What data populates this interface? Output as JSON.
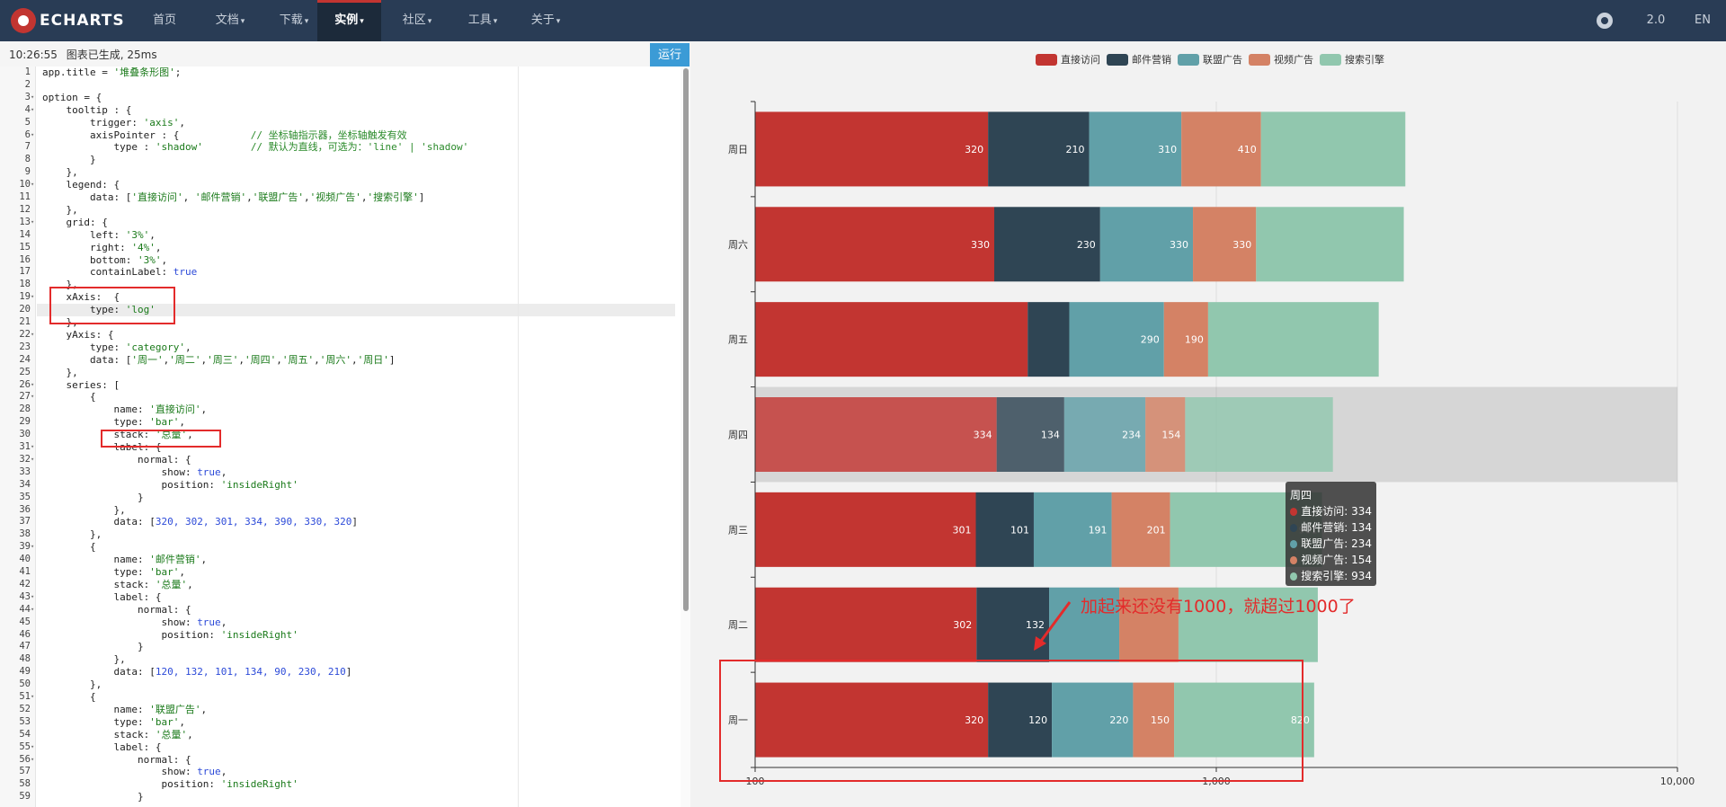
{
  "navbar": {
    "logo": "ECHARTS",
    "items": [
      {
        "label": "首页",
        "caret": false,
        "active": false
      },
      {
        "label": "文档",
        "caret": true,
        "active": false
      },
      {
        "label": "下载",
        "caret": true,
        "active": false
      },
      {
        "label": "实例",
        "caret": true,
        "active": true
      },
      {
        "label": "社区",
        "caret": true,
        "active": false
      },
      {
        "label": "工具",
        "caret": true,
        "active": false
      },
      {
        "label": "关于",
        "caret": true,
        "active": false
      }
    ],
    "version": "2.0",
    "lang": "EN"
  },
  "status": {
    "time": "10:26:55",
    "message": "图表已生成, 25ms"
  },
  "run_label": "运行",
  "code_lines": [
    "app.title = '堆叠条形图';",
    "",
    "option = {",
    "    tooltip : {",
    "        trigger: 'axis',",
    "        axisPointer : {            // 坐标轴指示器，坐标轴触发有效",
    "            type : 'shadow'        // 默认为直线，可选为：'line' | 'shadow'",
    "        }",
    "    },",
    "    legend: {",
    "        data: ['直接访问', '邮件营销','联盟广告','视频广告','搜索引擎']",
    "    },",
    "    grid: {",
    "        left: '3%',",
    "        right: '4%',",
    "        bottom: '3%',",
    "        containLabel: true",
    "    },",
    "    xAxis:  {",
    "        type: 'log'",
    "    },",
    "    yAxis: {",
    "        type: 'category',",
    "        data: ['周一','周二','周三','周四','周五','周六','周日']",
    "    },",
    "    series: [",
    "        {",
    "            name: '直接访问',",
    "            type: 'bar',",
    "            stack: '总量',",
    "            label: {",
    "                normal: {",
    "                    show: true,",
    "                    position: 'insideRight'",
    "                }",
    "            },",
    "            data: [320, 302, 301, 334, 390, 330, 320]",
    "        },",
    "        {",
    "            name: '邮件营销',",
    "            type: 'bar',",
    "            stack: '总量',",
    "            label: {",
    "                normal: {",
    "                    show: true,",
    "                    position: 'insideRight'",
    "                }",
    "            },",
    "            data: [120, 132, 101, 134, 90, 230, 210]",
    "        },",
    "        {",
    "            name: '联盟广告',",
    "            type: 'bar',",
    "            stack: '总量',",
    "            label: {",
    "                normal: {",
    "                    show: true,",
    "                    position: 'insideRight'",
    "                }"
  ],
  "fold_lines": [
    3,
    4,
    6,
    10,
    13,
    19,
    22,
    26,
    27,
    31,
    32,
    39,
    43,
    44,
    51,
    55,
    56
  ],
  "chart_data": {
    "type": "bar",
    "orientation": "horizontal",
    "stacked": true,
    "x_axis_type": "log",
    "xlim": [
      100,
      10000
    ],
    "x_ticks": [
      100,
      1000,
      10000
    ],
    "x_tick_labels": [
      "100",
      "1,000",
      "10,000"
    ],
    "categories": [
      "周一",
      "周二",
      "周三",
      "周四",
      "周五",
      "周六",
      "周日"
    ],
    "series": [
      {
        "name": "直接访问",
        "color": "#c23531",
        "values": [
          320,
          302,
          301,
          334,
          390,
          330,
          320
        ]
      },
      {
        "name": "邮件营销",
        "color": "#2f4554",
        "values": [
          120,
          132,
          101,
          134,
          90,
          230,
          210
        ]
      },
      {
        "name": "联盟广告",
        "color": "#61a0a8",
        "values": [
          220,
          182,
          191,
          234,
          290,
          330,
          310
        ]
      },
      {
        "name": "视频广告",
        "color": "#d48265",
        "values": [
          150,
          212,
          201,
          154,
          190,
          330,
          410
        ]
      },
      {
        "name": "搜索引擎",
        "color": "#91c7ae",
        "values": [
          820,
          832,
          901,
          934,
          1290,
          1330,
          1320
        ]
      }
    ],
    "hidden_labels": [
      [
        false,
        false,
        false,
        false,
        false
      ],
      [
        false,
        false,
        true,
        true,
        true
      ],
      [
        false,
        false,
        false,
        false,
        false
      ],
      [
        false,
        false,
        false,
        false,
        true
      ],
      [
        true,
        true,
        false,
        false,
        true
      ],
      [
        false,
        false,
        false,
        false,
        true
      ],
      [
        false,
        false,
        false,
        false,
        true
      ]
    ],
    "legend_position": "top-center",
    "highlighted_category": "周四"
  },
  "tooltip": {
    "title": "周四",
    "rows": [
      {
        "label": "直接访问: 334",
        "color": "#c23531"
      },
      {
        "label": "邮件营销: 134",
        "color": "#2f4554"
      },
      {
        "label": "联盟广告: 234",
        "color": "#61a0a8"
      },
      {
        "label": "视频广告: 154",
        "color": "#d48265"
      },
      {
        "label": "搜索引擎: 934",
        "color": "#91c7ae"
      }
    ]
  },
  "annotation": "加起来还没有1000，就超过1000了"
}
